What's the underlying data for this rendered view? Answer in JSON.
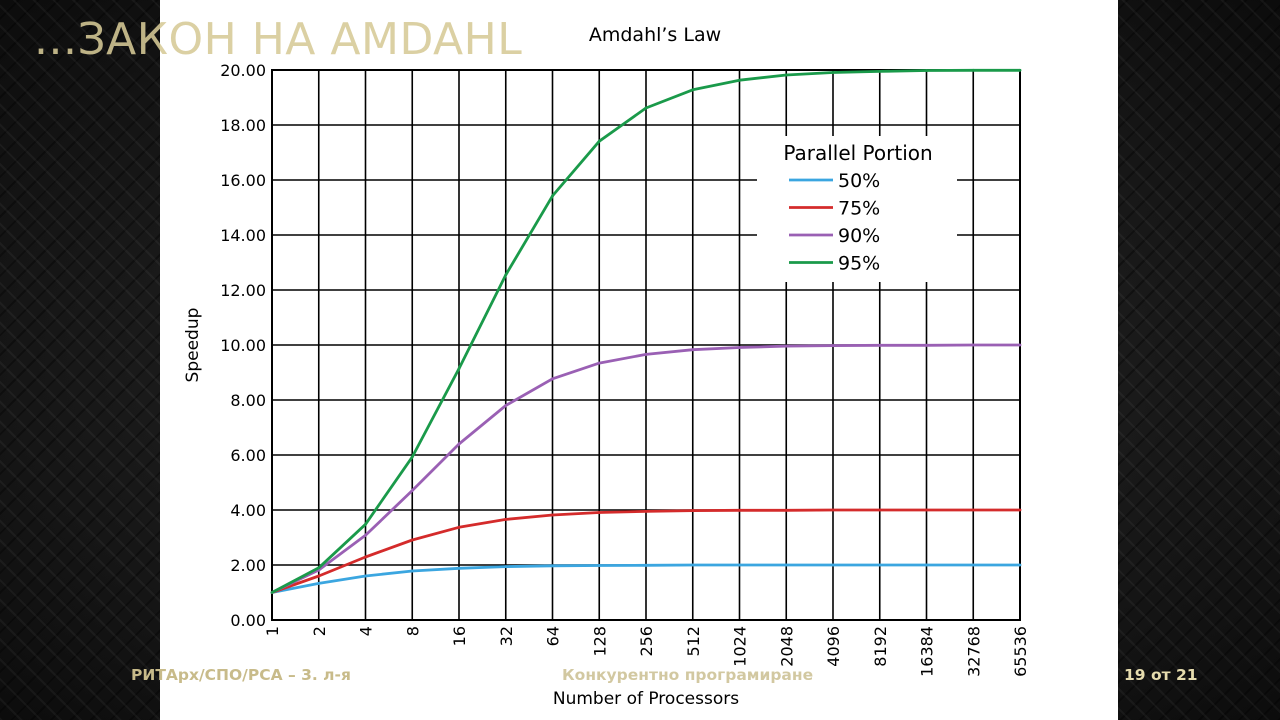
{
  "slide": {
    "title": "...ЗАКОН НА AMDAHL",
    "footer_left": "РИТАрх/СПО/РСА – 3. л-я",
    "footer_center": "Конкурентно програмиране",
    "page_number": "19 от 21"
  },
  "chart_data": {
    "type": "line",
    "title": "Amdahl’s Law",
    "xlabel": "Number of Processors",
    "ylabel": "Speedup",
    "x_scale": "log2",
    "x": [
      1,
      2,
      4,
      8,
      16,
      32,
      64,
      128,
      256,
      512,
      1024,
      2048,
      4096,
      8192,
      16384,
      32768,
      65536
    ],
    "categories": [
      "1",
      "2",
      "4",
      "8",
      "16",
      "32",
      "64",
      "128",
      "256",
      "512",
      "1024",
      "2048",
      "4096",
      "8192",
      "16384",
      "32768",
      "65536"
    ],
    "ylim": [
      0,
      20
    ],
    "yticks": [
      "0.00",
      "2.00",
      "4.00",
      "6.00",
      "8.00",
      "10.00",
      "12.00",
      "14.00",
      "16.00",
      "18.00",
      "20.00"
    ],
    "grid": true,
    "legend_title": "Parallel Portion",
    "legend_position": "upper-right",
    "series": [
      {
        "name": "50%",
        "color": "#3ba6e0",
        "values": [
          1.0,
          1.33,
          1.6,
          1.78,
          1.88,
          1.94,
          1.97,
          1.98,
          1.99,
          2.0,
          2.0,
          2.0,
          2.0,
          2.0,
          2.0,
          2.0,
          2.0
        ]
      },
      {
        "name": "75%",
        "color": "#d42b2b",
        "values": [
          1.0,
          1.6,
          2.29,
          2.91,
          3.37,
          3.66,
          3.82,
          3.91,
          3.95,
          3.98,
          3.99,
          3.99,
          4.0,
          4.0,
          4.0,
          4.0,
          4.0
        ]
      },
      {
        "name": "90%",
        "color": "#9a60b4",
        "values": [
          1.0,
          1.82,
          3.08,
          4.71,
          6.4,
          7.8,
          8.77,
          9.34,
          9.66,
          9.83,
          9.91,
          9.96,
          9.98,
          9.99,
          9.99,
          10.0,
          10.0
        ]
      },
      {
        "name": "95%",
        "color": "#1a9a4a",
        "values": [
          1.0,
          1.9,
          3.48,
          5.93,
          9.14,
          12.55,
          15.42,
          17.41,
          18.62,
          19.28,
          19.63,
          19.82,
          19.91,
          19.95,
          19.98,
          19.99,
          19.99
        ]
      }
    ]
  }
}
